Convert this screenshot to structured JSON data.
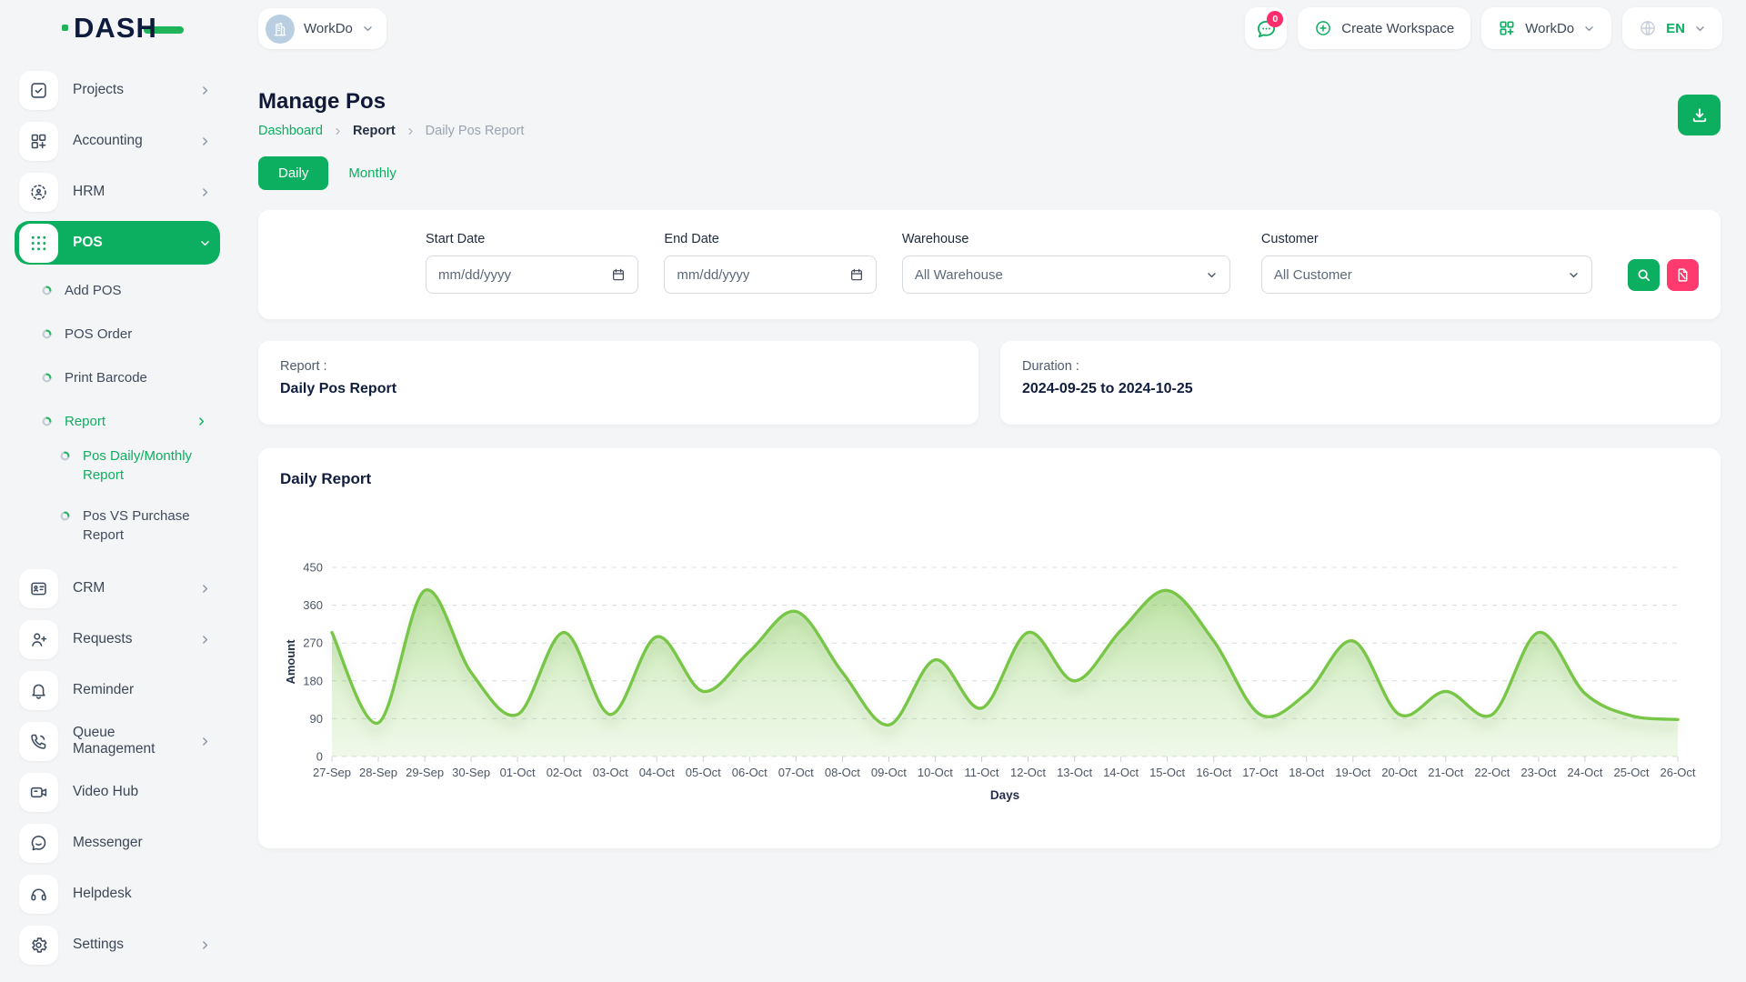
{
  "header": {
    "logo_text": "DASH",
    "workspace_name": "WorkDo",
    "chat_badge": "0",
    "create_workspace_label": "Create Workspace",
    "workspace_menu_label": "WorkDo",
    "language_label": "EN"
  },
  "sidebar": {
    "items": [
      {
        "label": "Projects",
        "icon": "checkbox-icon",
        "chevron": "right",
        "level": 0
      },
      {
        "label": "Accounting",
        "icon": "grid-plus-icon",
        "chevron": "right",
        "level": 0
      },
      {
        "label": "HRM",
        "icon": "person-target-icon",
        "chevron": "right",
        "level": 0
      },
      {
        "label": "POS",
        "icon": "dots-grid-icon",
        "chevron": "down",
        "level": 0,
        "active": true
      },
      {
        "label": "Add POS",
        "level": 1
      },
      {
        "label": "POS Order",
        "level": 1
      },
      {
        "label": "Print Barcode",
        "level": 1
      },
      {
        "label": "Report",
        "level": 1,
        "active": true,
        "chevron": "right"
      },
      {
        "label": "Pos Daily/Monthly Report",
        "level": 2,
        "active": true
      },
      {
        "label": "Pos VS Purchase Report",
        "level": 2
      },
      {
        "label": "CRM",
        "icon": "id-card-icon",
        "chevron": "right",
        "level": 0
      },
      {
        "label": "Requests",
        "icon": "person-plus-icon",
        "chevron": "right",
        "level": 0
      },
      {
        "label": "Reminder",
        "icon": "bell-icon",
        "level": 0
      },
      {
        "label": "Queue Management",
        "icon": "phone-call-icon",
        "chevron": "right",
        "level": 0
      },
      {
        "label": "Video Hub",
        "icon": "video-camera-icon",
        "level": 0
      },
      {
        "label": "Messenger",
        "icon": "chat-smile-icon",
        "level": 0
      },
      {
        "label": "Helpdesk",
        "icon": "headset-icon",
        "level": 0
      },
      {
        "label": "Settings",
        "icon": "gear-icon",
        "chevron": "right",
        "level": 0
      }
    ]
  },
  "page": {
    "title": "Manage Pos",
    "breadcrumb": {
      "dashboard": "Dashboard",
      "report": "Report",
      "current": "Daily Pos Report"
    },
    "tabs": {
      "daily": "Daily",
      "monthly": "Monthly"
    }
  },
  "filters": {
    "start_date": {
      "label": "Start Date",
      "placeholder": "mm/dd/yyyy"
    },
    "end_date": {
      "label": "End Date",
      "placeholder": "mm/dd/yyyy"
    },
    "warehouse": {
      "label": "Warehouse",
      "value": "All Warehouse"
    },
    "customer": {
      "label": "Customer",
      "value": "All Customer"
    }
  },
  "summary": {
    "report_label": "Report :",
    "report_value": "Daily Pos Report",
    "duration_label": "Duration :",
    "duration_value": "2024-09-25 to 2024-10-25"
  },
  "chart_card": {
    "title": "Daily Report"
  },
  "chart_data": {
    "type": "area",
    "x": [
      "27-Sep",
      "28-Sep",
      "29-Sep",
      "30-Sep",
      "01-Oct",
      "02-Oct",
      "03-Oct",
      "04-Oct",
      "05-Oct",
      "06-Oct",
      "07-Oct",
      "08-Oct",
      "09-Oct",
      "10-Oct",
      "11-Oct",
      "12-Oct",
      "13-Oct",
      "14-Oct",
      "15-Oct",
      "16-Oct",
      "17-Oct",
      "18-Oct",
      "19-Oct",
      "20-Oct",
      "21-Oct",
      "22-Oct",
      "23-Oct",
      "24-Oct",
      "25-Oct",
      "26-Oct"
    ],
    "series": [
      {
        "name": "Amount",
        "values": [
          295,
          80,
          395,
          200,
          100,
          295,
          100,
          285,
          155,
          250,
          345,
          200,
          75,
          230,
          115,
          295,
          180,
          300,
          395,
          275,
          100,
          150,
          275,
          100,
          155,
          100,
          295,
          150,
          97,
          88
        ]
      }
    ],
    "title": "Daily Report",
    "xlabel": "Days",
    "ylabel": "Amount",
    "ylim": [
      0,
      450
    ],
    "yticks": [
      0,
      90,
      180,
      270,
      360,
      450
    ],
    "grid": true,
    "legend": false,
    "line_color": "#78c646",
    "fill_color": "#a9d887"
  },
  "colors": {
    "primary": "#0caf60",
    "danger": "#ff3a6e",
    "badge": "#ff2d6b",
    "chart_line": "#78c646",
    "navy": "#101a38"
  }
}
